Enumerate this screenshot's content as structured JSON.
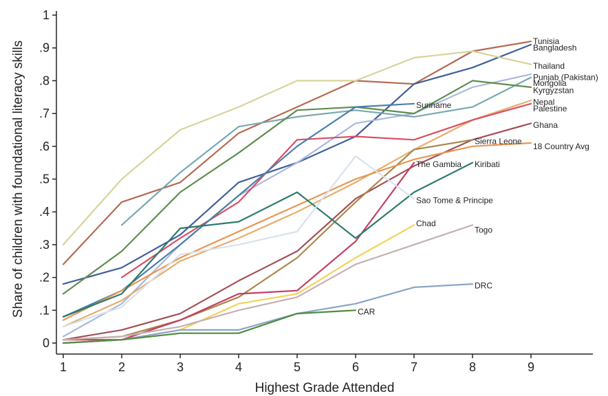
{
  "chart_data": {
    "type": "line",
    "title": "",
    "xlabel": "Highest Grade Attended",
    "ylabel": "Share of children with foundational literacy skills",
    "xlim": [
      1,
      10
    ],
    "ylim": [
      0,
      1
    ],
    "x_ticks": [
      "1",
      "2",
      "3",
      "4",
      "5",
      "6",
      "7",
      "8",
      "9"
    ],
    "y_ticks": [
      "0",
      ".1",
      ".2",
      ".3",
      ".4",
      ".5",
      ".6",
      ".7",
      ".8",
      ".9",
      "1"
    ],
    "grid": false,
    "legend": "none",
    "series": [
      {
        "name": "Tunisia",
        "color": "#b5694f",
        "x": [
          1,
          2,
          3,
          4,
          5,
          6,
          7,
          8,
          9
        ],
        "y": [
          0.24,
          0.43,
          0.49,
          0.64,
          0.72,
          0.8,
          0.79,
          0.89,
          0.92
        ]
      },
      {
        "name": "Bangladesh",
        "color": "#3f5f9a",
        "x": [
          1,
          2,
          3,
          4,
          5,
          6,
          7,
          8,
          9
        ],
        "y": [
          0.18,
          0.23,
          0.33,
          0.49,
          0.55,
          0.63,
          0.79,
          0.84,
          0.91
        ]
      },
      {
        "name": "Thailand",
        "color": "#d8d39a",
        "x": [
          1,
          2,
          3,
          4,
          5,
          6,
          7,
          8,
          9
        ],
        "y": [
          0.3,
          0.5,
          0.65,
          0.72,
          0.8,
          0.8,
          0.87,
          0.89,
          0.85
        ]
      },
      {
        "name": "Punjab (Pakistan)",
        "color": "#a8b9dc",
        "x": [
          1,
          2,
          3,
          4,
          5,
          6,
          7,
          8,
          9
        ],
        "y": [
          0.02,
          0.12,
          0.3,
          0.45,
          0.55,
          0.67,
          0.7,
          0.78,
          0.82
        ]
      },
      {
        "name": "Mongolia",
        "color": "#79a7b2",
        "x": [
          2,
          3,
          4,
          5,
          6,
          7,
          8,
          9
        ],
        "y": [
          0.36,
          0.52,
          0.66,
          0.69,
          0.71,
          0.69,
          0.72,
          0.81
        ]
      },
      {
        "name": "Kyrgyzstan",
        "color": "#5f8c4e",
        "x": [
          1,
          2,
          3,
          4,
          5,
          6,
          7,
          8,
          9
        ],
        "y": [
          0.15,
          0.28,
          0.46,
          0.58,
          0.71,
          0.72,
          0.7,
          0.8,
          0.78
        ]
      },
      {
        "name": "Nepal",
        "color": "#e5ad6e",
        "x": [
          1,
          2,
          3,
          4,
          5,
          6,
          7,
          8,
          9
        ],
        "y": [
          0.05,
          0.13,
          0.25,
          0.32,
          0.4,
          0.49,
          0.59,
          0.68,
          0.74
        ]
      },
      {
        "name": "Palestine",
        "color": "#d94e64",
        "x": [
          2,
          3,
          4,
          5,
          6,
          7,
          8,
          9
        ],
        "y": [
          0.2,
          0.32,
          0.43,
          0.62,
          0.63,
          0.62,
          0.68,
          0.73
        ]
      },
      {
        "name": "Suriname",
        "color": "#4a7fa8",
        "x": [
          1,
          2,
          3,
          4,
          5,
          6,
          7
        ],
        "y": [
          0.08,
          0.16,
          0.3,
          0.45,
          0.6,
          0.72,
          0.73
        ]
      },
      {
        "name": "Ghana",
        "color": "#a34f55",
        "x": [
          1,
          2,
          3,
          4,
          5,
          6,
          7,
          8,
          9
        ],
        "y": [
          0.01,
          0.04,
          0.09,
          0.19,
          0.28,
          0.44,
          0.54,
          0.62,
          0.67
        ]
      },
      {
        "name": "Sierra Leone",
        "color": "#a8884a",
        "x": [
          1,
          2,
          3,
          4,
          5,
          6,
          7,
          8
        ],
        "y": [
          0.01,
          0.02,
          0.07,
          0.14,
          0.26,
          0.43,
          0.59,
          0.62
        ]
      },
      {
        "name": "18 Country Avg",
        "color": "#e8964e",
        "x": [
          1,
          2,
          3,
          4,
          5,
          6,
          7,
          8,
          9
        ],
        "y": [
          0.07,
          0.16,
          0.26,
          0.34,
          0.42,
          0.5,
          0.56,
          0.6,
          0.61
        ]
      },
      {
        "name": "The Gambia",
        "color": "#c23e64",
        "x": [
          1,
          2,
          3,
          4,
          5,
          6,
          7
        ],
        "y": [
          0.01,
          0.01,
          0.07,
          0.15,
          0.16,
          0.31,
          0.55
        ]
      },
      {
        "name": "Kiribati",
        "color": "#2f7a6e",
        "x": [
          1,
          2,
          3,
          4,
          5,
          6,
          7,
          8
        ],
        "y": [
          0.08,
          0.15,
          0.35,
          0.37,
          0.46,
          0.32,
          0.46,
          0.55
        ]
      },
      {
        "name": "Sao Tome & Principe",
        "color": "#d9e1ee",
        "x": [
          1,
          2,
          3,
          4,
          5,
          6,
          7
        ],
        "y": [
          0.05,
          0.11,
          0.27,
          0.3,
          0.34,
          0.57,
          0.44
        ]
      },
      {
        "name": "Chad",
        "color": "#f2d25a",
        "x": [
          1,
          2,
          3,
          4,
          5,
          6,
          7
        ],
        "y": [
          0.0,
          0.01,
          0.04,
          0.12,
          0.15,
          0.26,
          0.36
        ]
      },
      {
        "name": "Togo",
        "color": "#c9aeb0",
        "x": [
          1,
          2,
          3,
          4,
          5,
          6,
          7,
          8
        ],
        "y": [
          0.01,
          0.02,
          0.05,
          0.1,
          0.14,
          0.24,
          0.3,
          0.36
        ]
      },
      {
        "name": "DRC",
        "color": "#8aa4c8",
        "x": [
          1,
          2,
          3,
          4,
          5,
          6,
          7,
          8
        ],
        "y": [
          0.0,
          0.01,
          0.04,
          0.04,
          0.09,
          0.12,
          0.17,
          0.18
        ]
      },
      {
        "name": "CAR",
        "color": "#4f8c3e",
        "x": [
          1,
          2,
          3,
          4,
          5,
          6
        ],
        "y": [
          0.0,
          0.01,
          0.03,
          0.03,
          0.09,
          0.1
        ]
      }
    ],
    "end_labels": [
      {
        "text": "Tunisia",
        "x": 9,
        "y": 0.92,
        "color": "#222"
      },
      {
        "text": "Bangladesh",
        "x": 9,
        "y": 0.9,
        "color": "#222"
      },
      {
        "text": "Thailand",
        "x": 9,
        "y": 0.845,
        "color": "#222"
      },
      {
        "text": "Punjab (Pakistan)",
        "x": 9,
        "y": 0.81,
        "color": "#222"
      },
      {
        "text": "Mongolia",
        "x": 9,
        "y": 0.792,
        "color": "#222"
      },
      {
        "text": "Kyrgyzstan",
        "x": 9,
        "y": 0.77,
        "color": "#222"
      },
      {
        "text": "Nepal",
        "x": 9,
        "y": 0.735,
        "color": "#222"
      },
      {
        "text": "Palestine",
        "x": 9,
        "y": 0.715,
        "color": "#222"
      },
      {
        "text": "Suriname",
        "x": 7,
        "y": 0.725,
        "color": "#222"
      },
      {
        "text": "Ghana",
        "x": 9,
        "y": 0.665,
        "color": "#222"
      },
      {
        "text": "Sierra Leone",
        "x": 8,
        "y": 0.615,
        "color": "#222"
      },
      {
        "text": "18 Country Avg",
        "x": 9,
        "y": 0.6,
        "color": "#e8964e"
      },
      {
        "text": "The Gambia",
        "x": 7,
        "y": 0.545,
        "color": "#222"
      },
      {
        "text": "Kiribati",
        "x": 8,
        "y": 0.545,
        "color": "#222"
      },
      {
        "text": "Sao Tome & Principe",
        "x": 7,
        "y": 0.435,
        "color": "#222"
      },
      {
        "text": "Chad",
        "x": 7,
        "y": 0.365,
        "color": "#222"
      },
      {
        "text": "Togo",
        "x": 8,
        "y": 0.345,
        "color": "#222"
      },
      {
        "text": "DRC",
        "x": 8,
        "y": 0.175,
        "color": "#222"
      },
      {
        "text": "CAR",
        "x": 6,
        "y": 0.095,
        "color": "#222"
      }
    ]
  }
}
